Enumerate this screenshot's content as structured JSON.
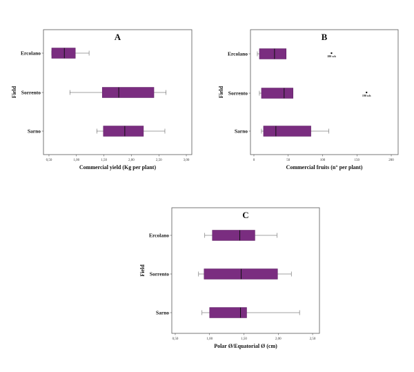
{
  "chart_data": [
    {
      "type": "boxplot",
      "title": "A",
      "xlabel": "Commercial yield (Kg per plant)",
      "ylabel": "Field",
      "xlim": [
        0.4,
        3.1
      ],
      "xticks": [
        "0,50",
        "1,00",
        "1,50",
        "2,00",
        "2,50",
        "3,00"
      ],
      "xtick_values": [
        0.5,
        1.0,
        1.5,
        2.0,
        2.5,
        3.0
      ],
      "categories": [
        "Ercolano",
        "Sorrento",
        "Sarno"
      ],
      "boxes": [
        {
          "category": "Ercolano",
          "min": 0.55,
          "q1": 0.55,
          "median": 0.78,
          "q3": 0.98,
          "max": 1.23
        },
        {
          "category": "Sorrento",
          "min": 0.88,
          "q1": 1.47,
          "median": 1.77,
          "q3": 2.41,
          "max": 2.63
        },
        {
          "category": "Sarno",
          "min": 1.37,
          "q1": 1.49,
          "median": 1.88,
          "q3": 2.22,
          "max": 2.61
        }
      ],
      "outliers": []
    },
    {
      "type": "boxplot",
      "title": "B",
      "xlabel": "Commercial fruits (n° per plant)",
      "ylabel": "Field",
      "xlim": [
        -5,
        210
      ],
      "xticks": [
        "0",
        "50",
        "100",
        "150",
        "200"
      ],
      "xtick_values": [
        0,
        50,
        100,
        150,
        200
      ],
      "categories": [
        "Ercolano",
        "Sorrento",
        "Sarno"
      ],
      "boxes": [
        {
          "category": "Ercolano",
          "min": 5,
          "q1": 8,
          "median": 30,
          "q3": 47,
          "max": 47
        },
        {
          "category": "Sorrento",
          "min": 8,
          "q1": 11,
          "median": 44,
          "q3": 57,
          "max": 57
        },
        {
          "category": "Sarno",
          "min": 11,
          "q1": 14,
          "median": 32,
          "q3": 83,
          "max": 109
        }
      ],
      "outliers": [
        {
          "category": "Ercolano",
          "value": 113,
          "label": "180 sch"
        },
        {
          "category": "Sorrento",
          "value": 164,
          "label": "190 sch"
        }
      ]
    },
    {
      "type": "boxplot",
      "title": "C",
      "xlabel": "Polar Ø/Equatorial Ø (cm)",
      "ylabel": "Field",
      "xlim": [
        0.45,
        2.6
      ],
      "xticks": [
        "0,50",
        "1,00",
        "1,50",
        "2,00",
        "2,50"
      ],
      "xtick_values": [
        0.5,
        1.0,
        1.5,
        2.0,
        2.5
      ],
      "categories": [
        "Ercolano",
        "Sorrento",
        "Sarno"
      ],
      "boxes": [
        {
          "category": "Ercolano",
          "min": 0.93,
          "q1": 1.04,
          "median": 1.44,
          "q3": 1.66,
          "max": 1.98
        },
        {
          "category": "Sorrento",
          "min": 0.84,
          "q1": 0.92,
          "median": 1.46,
          "q3": 1.99,
          "max": 2.19
        },
        {
          "category": "Sarno",
          "min": 0.89,
          "q1": 1.0,
          "median": 1.45,
          "q3": 1.54,
          "max": 2.31
        }
      ],
      "outliers": []
    }
  ]
}
